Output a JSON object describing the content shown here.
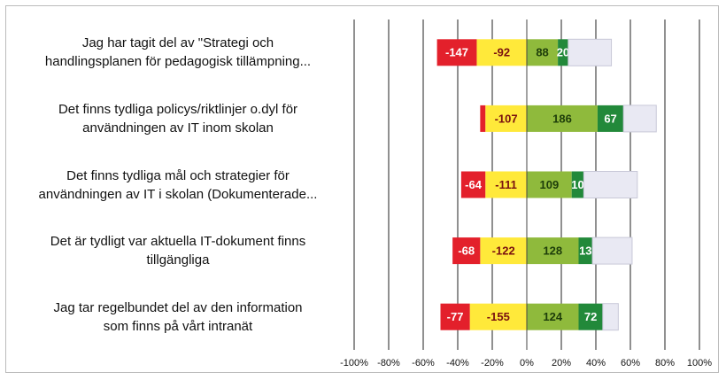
{
  "chart_data": {
    "type": "diverging-stacked-bar",
    "categories": [
      "Jag har tagit del av \"Strategi och\nhandlingsplanen för pedagogisk tillämpning...",
      "Det finns tydliga policys/riktlinjer o.dyl för\nanvändningen av IT inom skolan",
      "Det finns tydliga mål och strategier för\nanvändningen av IT i skolan (Dokumenterade...",
      "Det är tydligt var aktuella IT-dokument finns\ntillgängliga",
      "Jag tar regelbundet del av den information\nsom finns på vårt intranät"
    ],
    "series": [
      {
        "color": "#ffe93a",
        "values": [
          -29,
          -24,
          -24,
          -27,
          -33
        ],
        "labels": [
          -92,
          -107,
          -111,
          -122,
          -155
        ]
      },
      {
        "color": "#e3202b",
        "values": [
          -23,
          -3,
          -14,
          -16,
          -17
        ],
        "labels": [
          -147,
          null,
          -64,
          -68,
          -77
        ]
      },
      {
        "color": "#8fba3c",
        "values": [
          18,
          41,
          26,
          30,
          30
        ],
        "labels": [
          88,
          186,
          109,
          128,
          124
        ]
      },
      {
        "color": "#22893a",
        "values": [
          6,
          15,
          7,
          8,
          14
        ],
        "labels": [
          20,
          67,
          10,
          13,
          72
        ]
      },
      {
        "color": "#e9e9f3",
        "values": [
          25,
          19,
          31,
          23,
          9
        ],
        "labels": [
          null,
          null,
          null,
          null,
          null
        ]
      }
    ],
    "xlim": [
      -100,
      100
    ],
    "xticks": [
      {
        "value": -100,
        "label": "-100%"
      },
      {
        "value": -80,
        "label": "-80%"
      },
      {
        "value": -60,
        "label": "-60%"
      },
      {
        "value": -40,
        "label": "-40%"
      },
      {
        "value": -20,
        "label": "-20%"
      },
      {
        "value": 0,
        "label": "0%"
      },
      {
        "value": 20,
        "label": "20%"
      },
      {
        "value": 40,
        "label": "40%"
      },
      {
        "value": 60,
        "label": "60%"
      },
      {
        "value": 80,
        "label": "80%"
      },
      {
        "value": 100,
        "label": "100%"
      }
    ],
    "grid": true
  }
}
